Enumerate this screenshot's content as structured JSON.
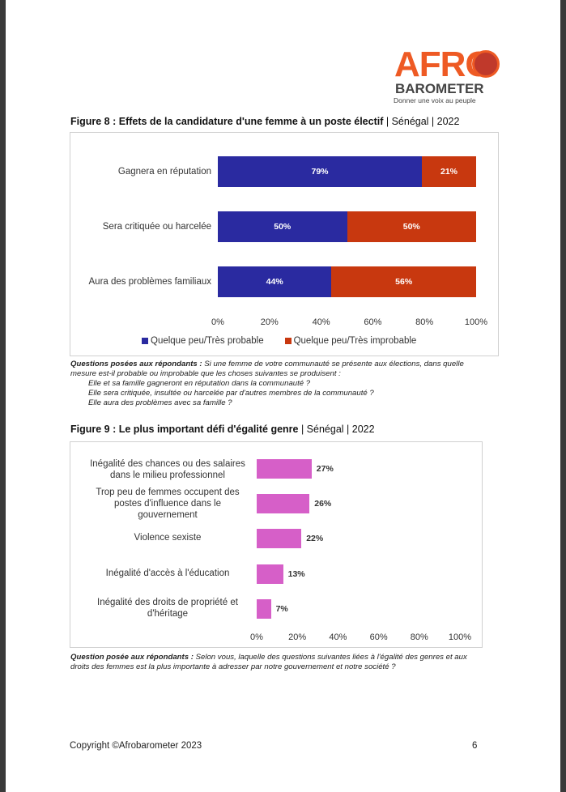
{
  "logo": {
    "text": "AFRO",
    "sub": "BAROMETER",
    "tagline": "Donner une voix au peuple"
  },
  "figure8": {
    "title_bold": "Figure 8 : Effets de la candidature d'une femme à un poste électif",
    "title_rest": " | Sénégal | 2022"
  },
  "figure9": {
    "title_bold": "Figure 9 : Le plus important défi d'égalité genre",
    "title_rest": " | Sénégal | 2022"
  },
  "notes8": {
    "label": "Questions posées aux répondants :",
    "text": " Si une femme de votre communauté se présente aux élections, dans quelle mesure est-il probable ou improbable que les choses suivantes se produisent :",
    "items": [
      "Elle et sa famille gagneront en réputation dans la communauté ?",
      "Elle sera critiquée, insultée ou harcelée par d'autres membres de la communauté ?",
      "Elle aura des problèmes avec sa famille ?"
    ]
  },
  "notes9": {
    "label": "Question posée aux répondants :",
    "text": " Selon vous, laquelle des questions suivantes liées à l'égalité des genres et aux droits des femmes est la plus importante à adresser par notre gouvernement et notre société ?"
  },
  "footer": {
    "copyright": "Copyright ©Afrobarometer 2023",
    "page": "6"
  },
  "chart_data": [
    {
      "type": "bar",
      "stacked": true,
      "orientation": "horizontal",
      "categories": [
        "Gagnera en réputation",
        "Sera critiquée ou harcelée",
        "Aura des problèmes familiaux"
      ],
      "series": [
        {
          "name": "Quelque peu/Très probable",
          "color": "#2a2aa0",
          "values": [
            79,
            50,
            44
          ],
          "labels": [
            "79%",
            "50%",
            "44%"
          ]
        },
        {
          "name": "Quelque peu/Très improbable",
          "color": "#c8380f",
          "values": [
            21,
            50,
            56
          ],
          "labels": [
            "21%",
            "50%",
            "56%"
          ]
        }
      ],
      "xlim": [
        0,
        100
      ],
      "ticks": [
        "0%",
        "20%",
        "40%",
        "60%",
        "80%",
        "100%"
      ],
      "legend": "bottom"
    },
    {
      "type": "bar",
      "orientation": "horizontal",
      "categories": [
        "Inégalité des chances ou des salaires dans le milieu professionnel",
        "Trop peu de femmes occupent des postes d'influence dans le gouvernement",
        "Violence sexiste",
        "Inégalité d'accès à l'éducation",
        "Inégalité des droits de propriété et d'héritage"
      ],
      "values": [
        27,
        26,
        22,
        13,
        7
      ],
      "labels": [
        "27%",
        "26%",
        "22%",
        "13%",
        "7%"
      ],
      "color": "#d65fc8",
      "xlim": [
        0,
        100
      ],
      "ticks": [
        "0%",
        "20%",
        "40%",
        "60%",
        "80%",
        "100%"
      ]
    }
  ]
}
